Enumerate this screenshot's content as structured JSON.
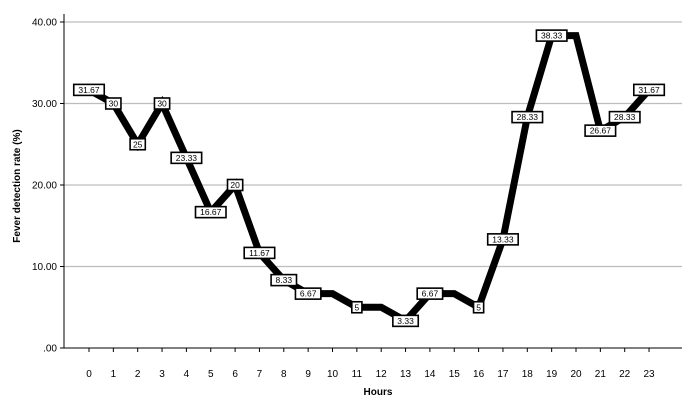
{
  "chart_data": {
    "type": "line",
    "title": "",
    "xlabel": "Hours",
    "ylabel": "Fever detection rate (%)",
    "ylim": [
      0,
      40
    ],
    "yticks": [
      ".00",
      "10.00",
      "20.00",
      "30.00",
      "40.00"
    ],
    "grid": "horizontal",
    "x": [
      "0",
      "1",
      "2",
      "3",
      "4",
      "5",
      "6",
      "7",
      "8",
      "9",
      "10",
      "11",
      "12",
      "13",
      "14",
      "15",
      "16",
      "17",
      "18",
      "19",
      "20",
      "21",
      "22",
      "23"
    ],
    "series": [
      {
        "values": [
          31.67,
          30,
          25,
          30,
          23.33,
          16.67,
          20,
          11.67,
          8.33,
          6.67,
          6.67,
          5,
          5,
          3.33,
          6.67,
          6.67,
          5,
          13.33,
          28.33,
          38.33,
          38.33,
          26.67,
          28.33,
          31.67
        ],
        "labels": [
          "31.67",
          "30",
          "25",
          "30",
          "23.33",
          "16.67",
          "20",
          "11.67",
          "8.33",
          "6.67",
          "",
          "5",
          "",
          "3.33",
          "6.67",
          "",
          "5",
          "13.33",
          "28.33",
          "38.33",
          "",
          "26.67",
          "28.33",
          "31.67"
        ],
        "color": "#000000"
      }
    ]
  }
}
